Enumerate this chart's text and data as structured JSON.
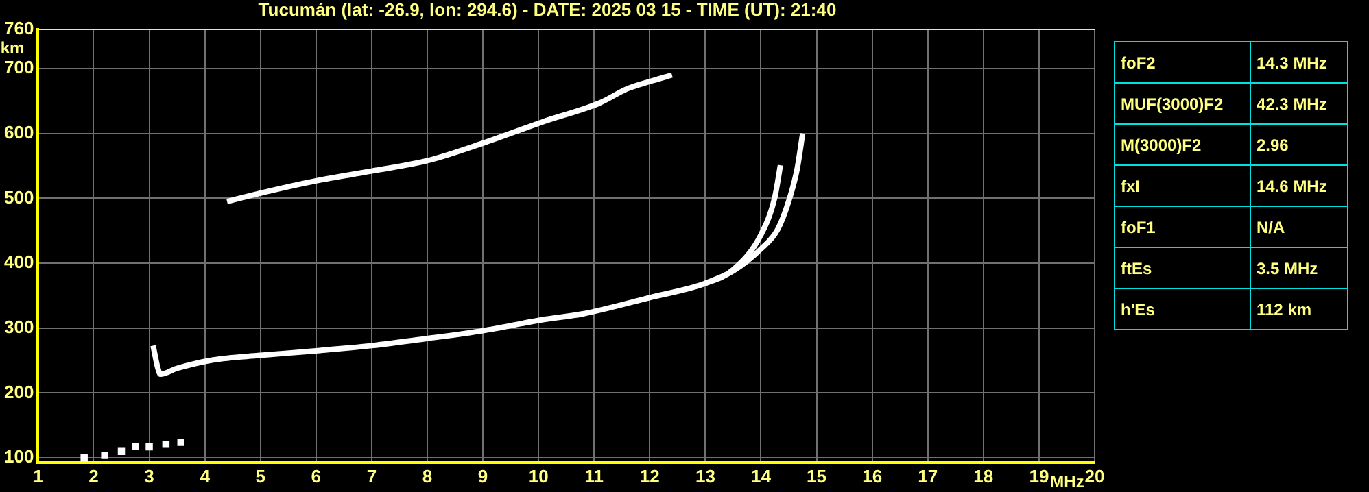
{
  "chart_data": {
    "type": "line",
    "title": "Tucumán (lat: -26.9, lon: 294.6) - DATE: 2025 03 15 - TIME (UT): 21:40",
    "xlabel": "MHz",
    "ylabel": "km",
    "xlim": [
      1,
      20
    ],
    "xticks": [
      1,
      2,
      3,
      4,
      5,
      6,
      7,
      8,
      9,
      10,
      11,
      12,
      13,
      14,
      15,
      16,
      17,
      18,
      19,
      20
    ],
    "ylim": [
      93,
      760
    ],
    "yticks": [
      100,
      200,
      300,
      400,
      500,
      600,
      700,
      760
    ],
    "grid": true,
    "legend": false,
    "series": [
      {
        "color": "#ffffff",
        "x": [
          3.07,
          3.15,
          3.2,
          3.5,
          4.15,
          5,
          6,
          7,
          8,
          9,
          10.08,
          10.8,
          12,
          13,
          13.5,
          14,
          14.25,
          14.35
        ],
        "values": [
          273,
          240,
          229,
          238,
          251,
          258,
          265,
          273,
          284,
          296,
          313,
          322,
          347,
          369,
          390,
          444,
          502,
          551
        ]
      },
      {
        "color": "#ffffff",
        "x": [
          13,
          13.5,
          14,
          14.3,
          14.5,
          14.65,
          14.75
        ],
        "values": [
          369,
          388,
          422,
          452,
          496,
          545,
          600
        ]
      },
      {
        "color": "#ffffff",
        "x": [
          4.4,
          5,
          6,
          7,
          8,
          9,
          10.08,
          11.1,
          11.6,
          12,
          12.4
        ],
        "values": [
          495,
          508,
          527,
          542,
          558,
          585,
          618,
          647,
          669,
          680,
          690
        ]
      },
      {
        "type": "scatter",
        "color": "#ffffff",
        "marker": "square",
        "x": [
          1.83,
          2.2,
          2.5,
          2.75,
          3.0,
          3.3,
          3.57
        ],
        "values": [
          100,
          104,
          110,
          118,
          117,
          121,
          124
        ]
      }
    ],
    "annotations": [
      "foF2",
      "14.3 MHz",
      "MUF(3000)F2",
      "42.3 MHz",
      "M(3000)F2",
      "2.96",
      "fxI",
      "14.6 MHz",
      "foF1",
      "N/A",
      "ftEs",
      "3.5 MHz",
      "h'Es",
      "112 km"
    ]
  }
}
